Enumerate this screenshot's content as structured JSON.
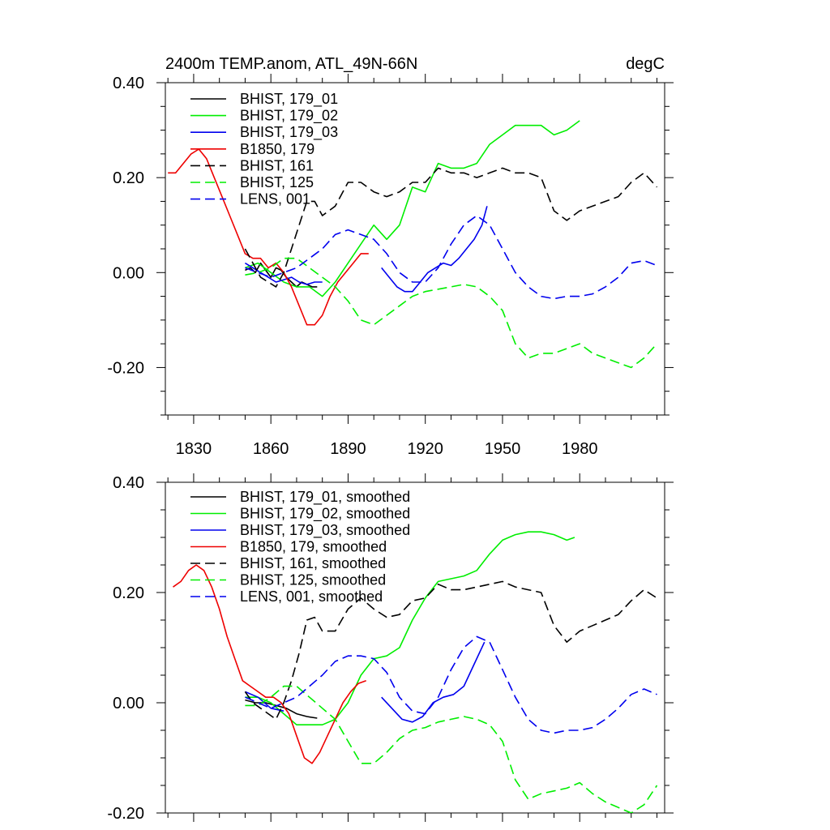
{
  "chart_data": [
    {
      "type": "line",
      "title": "2400m TEMP.anom, ATL_49N-66N",
      "units": "degC",
      "xlabel": "",
      "ylabel": "",
      "xlim": [
        1819,
        2013
      ],
      "ylim": [
        -0.3,
        0.4
      ],
      "xticks": [
        1830,
        1860,
        1890,
        1920,
        1950,
        1980
      ],
      "xtick_labels": [
        "1830",
        "1860",
        "1890",
        "1920",
        "1950",
        "1980"
      ],
      "yticks": [
        -0.2,
        0.0,
        0.2,
        0.4
      ],
      "ytick_labels": [
        "-0.20",
        "0.00",
        "0.20",
        "0.40"
      ],
      "grid": false,
      "legend": "top-left",
      "series": [
        {
          "name": "BHIST, 179_01",
          "color": "#000000",
          "dash": false,
          "x": [
            1850,
            1852,
            1854,
            1856,
            1858,
            1860,
            1862,
            1864,
            1866,
            1868,
            1870,
            1872,
            1874,
            1876,
            1878
          ],
          "y": [
            0.005,
            0.01,
            0.0,
            0.02,
            0.005,
            -0.01,
            0.01,
            0.005,
            -0.01,
            -0.02,
            -0.03,
            -0.02,
            -0.025,
            -0.03,
            -0.03
          ]
        },
        {
          "name": "BHIST, 179_02",
          "color": "#00ee00",
          "dash": false,
          "x": [
            1850,
            1855,
            1860,
            1865,
            1870,
            1875,
            1880,
            1885,
            1890,
            1895,
            1900,
            1905,
            1910,
            1915,
            1920,
            1925,
            1930,
            1935,
            1940,
            1945,
            1950,
            1955,
            1960,
            1965,
            1970,
            1975,
            1980
          ],
          "y": [
            0.01,
            0.02,
            0.0,
            -0.02,
            -0.03,
            -0.03,
            -0.05,
            -0.02,
            0.02,
            0.06,
            0.1,
            0.07,
            0.1,
            0.18,
            0.17,
            0.23,
            0.22,
            0.22,
            0.23,
            0.27,
            0.29,
            0.31,
            0.31,
            0.31,
            0.29,
            0.3,
            0.32
          ]
        },
        {
          "name": "BHIST, 179_03",
          "color": "#0000ee",
          "dash": false,
          "x": [
            1850,
            1853,
            1856,
            1859,
            1862,
            1865,
            1868,
            1871,
            1874,
            1877,
            1880,
            1903,
            1906,
            1909,
            1912,
            1915,
            1918,
            1921,
            1924,
            1927,
            1930,
            1933,
            1936,
            1939,
            1942,
            1944
          ],
          "y": [
            0.02,
            0.01,
            0.0,
            -0.01,
            -0.02,
            -0.015,
            -0.01,
            -0.02,
            -0.025,
            -0.02,
            -0.02,
            0.01,
            -0.01,
            -0.03,
            -0.04,
            -0.04,
            -0.02,
            0.0,
            0.01,
            0.02,
            0.015,
            0.03,
            0.05,
            0.07,
            0.1,
            0.14
          ]
        },
        {
          "name": "B1850, 179",
          "color": "#ee0000",
          "dash": false,
          "x": [
            1820,
            1823,
            1826,
            1829,
            1832,
            1835,
            1838,
            1841,
            1844,
            1847,
            1850,
            1853,
            1856,
            1859,
            1862,
            1865,
            1868,
            1871,
            1874,
            1877,
            1880,
            1883,
            1886,
            1889,
            1892,
            1895,
            1898
          ],
          "y": [
            0.21,
            0.21,
            0.23,
            0.25,
            0.26,
            0.24,
            0.2,
            0.16,
            0.12,
            0.08,
            0.04,
            0.03,
            0.03,
            0.01,
            0.02,
            0.0,
            -0.03,
            -0.07,
            -0.11,
            -0.11,
            -0.09,
            -0.05,
            -0.02,
            0.0,
            0.02,
            0.04,
            0.04
          ]
        },
        {
          "name": "BHIST, 161",
          "color": "#000000",
          "dash": true,
          "x": [
            1850,
            1853,
            1856,
            1859,
            1862,
            1865,
            1868,
            1871,
            1874,
            1877,
            1880,
            1885,
            1890,
            1895,
            1900,
            1905,
            1910,
            1915,
            1920,
            1925,
            1930,
            1935,
            1940,
            1945,
            1950,
            1955,
            1960,
            1965,
            1970,
            1975,
            1980,
            1985,
            1990,
            1995,
            2000,
            2005,
            2010
          ],
          "y": [
            0.05,
            0.02,
            -0.01,
            -0.02,
            -0.03,
            0.0,
            0.05,
            0.1,
            0.15,
            0.15,
            0.12,
            0.14,
            0.19,
            0.19,
            0.17,
            0.16,
            0.17,
            0.19,
            0.19,
            0.22,
            0.21,
            0.21,
            0.2,
            0.21,
            0.22,
            0.21,
            0.21,
            0.2,
            0.13,
            0.11,
            0.13,
            0.14,
            0.15,
            0.16,
            0.19,
            0.21,
            0.18
          ]
        },
        {
          "name": "BHIST, 125",
          "color": "#00ee00",
          "dash": true,
          "x": [
            1850,
            1855,
            1860,
            1865,
            1870,
            1875,
            1880,
            1885,
            1890,
            1895,
            1900,
            1905,
            1910,
            1915,
            1920,
            1925,
            1930,
            1935,
            1940,
            1945,
            1950,
            1955,
            1960,
            1965,
            1970,
            1975,
            1980,
            1985,
            1990,
            1995,
            2000,
            2005,
            2010
          ],
          "y": [
            -0.005,
            0.0,
            0.01,
            0.03,
            0.03,
            0.01,
            -0.01,
            -0.03,
            -0.06,
            -0.1,
            -0.11,
            -0.09,
            -0.07,
            -0.05,
            -0.04,
            -0.035,
            -0.03,
            -0.025,
            -0.03,
            -0.05,
            -0.08,
            -0.15,
            -0.18,
            -0.17,
            -0.17,
            -0.16,
            -0.15,
            -0.17,
            -0.18,
            -0.19,
            -0.2,
            -0.18,
            -0.15
          ]
        },
        {
          "name": "LENS, 001",
          "color": "#0000ee",
          "dash": true,
          "x": [
            1850,
            1855,
            1860,
            1865,
            1870,
            1875,
            1880,
            1885,
            1890,
            1895,
            1900,
            1905,
            1910,
            1915,
            1920,
            1925,
            1930,
            1935,
            1940,
            1945,
            1950,
            1955,
            1960,
            1965,
            1970,
            1975,
            1980,
            1985,
            1990,
            1995,
            2000,
            2005,
            2010
          ],
          "y": [
            0.01,
            0.0,
            -0.01,
            0.0,
            0.01,
            0.03,
            0.05,
            0.08,
            0.09,
            0.08,
            0.07,
            0.04,
            0.0,
            -0.02,
            -0.02,
            0.01,
            0.06,
            0.1,
            0.12,
            0.1,
            0.05,
            0.0,
            -0.03,
            -0.05,
            -0.055,
            -0.05,
            -0.05,
            -0.045,
            -0.03,
            -0.01,
            0.02,
            0.025,
            0.015
          ]
        }
      ]
    },
    {
      "type": "line",
      "title": "",
      "units": "",
      "xlabel": "",
      "ylabel": "",
      "xlim": [
        1819,
        2013
      ],
      "ylim": [
        -0.2,
        0.4
      ],
      "xticks": [
        1830,
        1860,
        1890,
        1920,
        1950,
        1980
      ],
      "xtick_labels": [],
      "yticks": [
        -0.2,
        0.0,
        0.2,
        0.4
      ],
      "ytick_labels": [
        "-0.20",
        "0.00",
        "0.20",
        "0.40"
      ],
      "grid": false,
      "legend": "top-left",
      "series": [
        {
          "name": "BHIST, 179_01, smoothed",
          "color": "#000000",
          "dash": false,
          "x": [
            1850,
            1854,
            1858,
            1862,
            1866,
            1870,
            1874,
            1878
          ],
          "y": [
            0.005,
            0.0,
            0.0,
            -0.005,
            -0.01,
            -0.02,
            -0.025,
            -0.028
          ]
        },
        {
          "name": "BHIST, 179_02, smoothed",
          "color": "#00ee00",
          "dash": false,
          "x": [
            1850,
            1855,
            1860,
            1865,
            1870,
            1875,
            1880,
            1885,
            1890,
            1895,
            1900,
            1905,
            1910,
            1915,
            1920,
            1925,
            1930,
            1935,
            1940,
            1945,
            1950,
            1955,
            1960,
            1965,
            1970,
            1975,
            1978
          ],
          "y": [
            0.01,
            0.01,
            0.0,
            -0.02,
            -0.04,
            -0.04,
            -0.04,
            -0.03,
            0.0,
            0.05,
            0.08,
            0.085,
            0.1,
            0.15,
            0.19,
            0.22,
            0.225,
            0.23,
            0.24,
            0.27,
            0.295,
            0.305,
            0.31,
            0.31,
            0.305,
            0.295,
            0.3
          ]
        },
        {
          "name": "BHIST, 179_03, smoothed",
          "color": "#0000ee",
          "dash": false,
          "x": [
            1850,
            1855,
            1860,
            1865,
            1903,
            1907,
            1911,
            1915,
            1919,
            1923,
            1927,
            1931,
            1935,
            1939,
            1943
          ],
          "y": [
            0.02,
            0.01,
            -0.01,
            -0.015,
            0.01,
            -0.01,
            -0.03,
            -0.035,
            -0.025,
            0.0,
            0.01,
            0.015,
            0.03,
            0.07,
            0.11
          ]
        },
        {
          "name": "B1850, 179, smoothed",
          "color": "#ee0000",
          "dash": false,
          "x": [
            1822,
            1825,
            1828,
            1831,
            1834,
            1837,
            1840,
            1843,
            1846,
            1849,
            1852,
            1855,
            1858,
            1861,
            1864,
            1867,
            1870,
            1873,
            1876,
            1879,
            1882,
            1885,
            1888,
            1891,
            1894,
            1897
          ],
          "y": [
            0.21,
            0.22,
            0.24,
            0.25,
            0.24,
            0.21,
            0.17,
            0.12,
            0.08,
            0.04,
            0.03,
            0.02,
            0.01,
            0.01,
            0.0,
            -0.02,
            -0.06,
            -0.1,
            -0.11,
            -0.09,
            -0.06,
            -0.03,
            0.0,
            0.02,
            0.035,
            0.04
          ]
        },
        {
          "name": "BHIST, 161, smoothed",
          "color": "#000000",
          "dash": true,
          "x": [
            1850,
            1853,
            1856,
            1859,
            1862,
            1865,
            1868,
            1871,
            1874,
            1877,
            1880,
            1885,
            1890,
            1895,
            1900,
            1905,
            1910,
            1915,
            1920,
            1925,
            1930,
            1935,
            1940,
            1945,
            1950,
            1955,
            1960,
            1965,
            1970,
            1975,
            1980,
            1985,
            1990,
            1995,
            2000,
            2005,
            2010
          ],
          "y": [
            0.02,
            0.0,
            -0.01,
            -0.02,
            -0.03,
            0.0,
            0.04,
            0.09,
            0.15,
            0.155,
            0.13,
            0.13,
            0.17,
            0.19,
            0.17,
            0.155,
            0.16,
            0.185,
            0.19,
            0.215,
            0.205,
            0.205,
            0.21,
            0.215,
            0.22,
            0.21,
            0.205,
            0.2,
            0.14,
            0.11,
            0.13,
            0.14,
            0.15,
            0.16,
            0.185,
            0.205,
            0.19
          ]
        },
        {
          "name": "BHIST, 125, smoothed",
          "color": "#00ee00",
          "dash": true,
          "x": [
            1850,
            1855,
            1860,
            1865,
            1870,
            1875,
            1880,
            1885,
            1890,
            1895,
            1900,
            1905,
            1910,
            1915,
            1920,
            1925,
            1930,
            1935,
            1940,
            1945,
            1950,
            1955,
            1960,
            1965,
            1970,
            1975,
            1980,
            1985,
            1990,
            1995,
            2000,
            2005,
            2010
          ],
          "y": [
            -0.005,
            -0.005,
            0.01,
            0.03,
            0.03,
            0.01,
            -0.01,
            -0.03,
            -0.07,
            -0.11,
            -0.11,
            -0.09,
            -0.065,
            -0.05,
            -0.045,
            -0.035,
            -0.03,
            -0.025,
            -0.03,
            -0.04,
            -0.07,
            -0.14,
            -0.175,
            -0.165,
            -0.16,
            -0.155,
            -0.145,
            -0.165,
            -0.18,
            -0.19,
            -0.2,
            -0.185,
            -0.15
          ]
        },
        {
          "name": "LENS, 001, smoothed",
          "color": "#0000ee",
          "dash": true,
          "x": [
            1850,
            1855,
            1860,
            1865,
            1870,
            1875,
            1880,
            1885,
            1890,
            1895,
            1900,
            1905,
            1910,
            1915,
            1920,
            1925,
            1930,
            1935,
            1940,
            1945,
            1950,
            1955,
            1960,
            1965,
            1970,
            1975,
            1980,
            1985,
            1990,
            1995,
            2000,
            2005,
            2010
          ],
          "y": [
            0.01,
            0.0,
            -0.01,
            0.0,
            0.01,
            0.03,
            0.05,
            0.075,
            0.085,
            0.085,
            0.08,
            0.055,
            0.01,
            -0.015,
            -0.02,
            0.01,
            0.06,
            0.1,
            0.12,
            0.11,
            0.06,
            0.01,
            -0.03,
            -0.05,
            -0.055,
            -0.05,
            -0.05,
            -0.045,
            -0.03,
            -0.01,
            0.015,
            0.025,
            0.015
          ]
        }
      ]
    }
  ]
}
